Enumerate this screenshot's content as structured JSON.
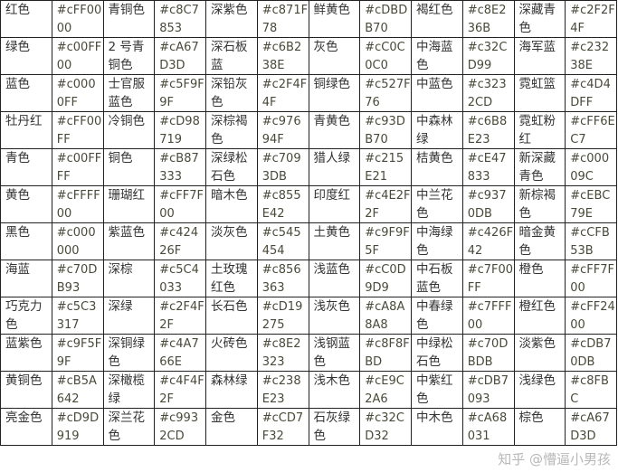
{
  "rows": [
    [
      [
        "红色",
        "#cFF0000"
      ],
      [
        "青铜色",
        "#c8C7853"
      ],
      [
        "深紫色",
        "#c871F78"
      ],
      [
        "鲜黄色",
        "#cDBDB70"
      ],
      [
        "褐红色",
        "#c8E236B"
      ],
      [
        "深藏青色",
        "#c2F2F4F"
      ]
    ],
    [
      [
        "绿色",
        "#c00FF00"
      ],
      [
        "2 号青铜色",
        "#cA67D3D"
      ],
      [
        "深石板蓝",
        "#c6B238E"
      ],
      [
        "灰色",
        "#cC0C0C0"
      ],
      [
        "中海蓝色",
        "#c32CD99"
      ],
      [
        "海军蓝",
        "#c23238E"
      ]
    ],
    [
      [
        "蓝色",
        "#c0000FF"
      ],
      [
        "士官服蓝色",
        "#c5F9F9F"
      ],
      [
        "深铅灰色",
        "#c2F4F4F"
      ],
      [
        "铜绿色",
        "#c527F76"
      ],
      [
        "中蓝色",
        "#c3232CD"
      ],
      [
        "霓虹篮",
        "#c4D4DFF"
      ]
    ],
    [
      [
        "牡丹红",
        "#cFF00FF"
      ],
      [
        "冷铜色",
        "#cD98719"
      ],
      [
        "深棕褐色",
        "#c97694F"
      ],
      [
        "青黄色",
        "#c93DB70"
      ],
      [
        "中森林绿",
        "#c6B8E23"
      ],
      [
        "霓虹粉红",
        "#cFF6EC7"
      ]
    ],
    [
      [
        "青色",
        "#c00FFFF"
      ],
      [
        "铜色",
        "#cB87333"
      ],
      [
        "深绿松石色",
        "#c7093DB"
      ],
      [
        "猎人绿",
        "#c215E21"
      ],
      [
        "桔黄色",
        "#cE47833"
      ],
      [
        "新深藏青色",
        "#c00009C"
      ]
    ],
    [
      [
        "黄色",
        "#cFFFF00"
      ],
      [
        "珊瑚红",
        "#cFF7F00"
      ],
      [
        "暗木色",
        "#c855E42"
      ],
      [
        "印度红",
        "#c4E2F2F"
      ],
      [
        "中兰花色",
        "#c9370DB"
      ],
      [
        "新棕褐色",
        "#cEBC79E"
      ]
    ],
    [
      [
        "黑色",
        "#c000000"
      ],
      [
        "紫蓝色",
        "#c42426F"
      ],
      [
        "淡灰色",
        "#c545454"
      ],
      [
        "土黄色",
        "#c9F9F5F"
      ],
      [
        "中海绿色",
        "#c426F42"
      ],
      [
        "暗金黄色",
        "#cCFB53B"
      ]
    ],
    [
      [
        "海蓝",
        "#c70DB93"
      ],
      [
        "深棕",
        "#c5C4033"
      ],
      [
        "土玫瑰红色",
        "#c856363"
      ],
      [
        "浅蓝色",
        "#cC0D9D9"
      ],
      [
        "中石板蓝色",
        "#c7F00FF"
      ],
      [
        "橙色",
        "#cFF7F00"
      ]
    ],
    [
      [
        "巧克力色",
        "#c5C3317"
      ],
      [
        "深绿",
        "#c2F4F2F"
      ],
      [
        "长石色",
        "#cD19275"
      ],
      [
        "浅灰色",
        "#cA8A8A8"
      ],
      [
        "中春绿色",
        "#c7FFF00"
      ],
      [
        "橙红色",
        "#cFF2400"
      ]
    ],
    [
      [
        "蓝紫色",
        "#c9F5F9F"
      ],
      [
        "深铜绿色",
        "#c4A766E"
      ],
      [
        "火砖色",
        "#c8E2323"
      ],
      [
        "浅钢蓝色",
        "#c8F8FBD"
      ],
      [
        "中绿松石色",
        "#c70DBDB"
      ],
      [
        "淡紫色",
        "#cDB70DB"
      ]
    ],
    [
      [
        "黄铜色",
        "#cB5A642"
      ],
      [
        "深橄榄绿",
        "#c4F4F2F"
      ],
      [
        "森林绿",
        "#c238E23"
      ],
      [
        "浅木色",
        "#cE9C2A6"
      ],
      [
        "中紫红色",
        "#cDB7093"
      ],
      [
        "浅绿色",
        "#c8FBC"
      ]
    ],
    [
      [
        "亮金色",
        "#cD9D919"
      ],
      [
        "深兰花色",
        "#c9932CD"
      ],
      [
        "金色",
        "#cCD7F32"
      ],
      [
        "石灰绿色",
        "#c32CD32"
      ],
      [
        "中木色",
        "#cA68031"
      ],
      [
        "棕色",
        "#cA67D3D"
      ]
    ]
  ],
  "watermark": "知乎 @懵逼小男孩"
}
